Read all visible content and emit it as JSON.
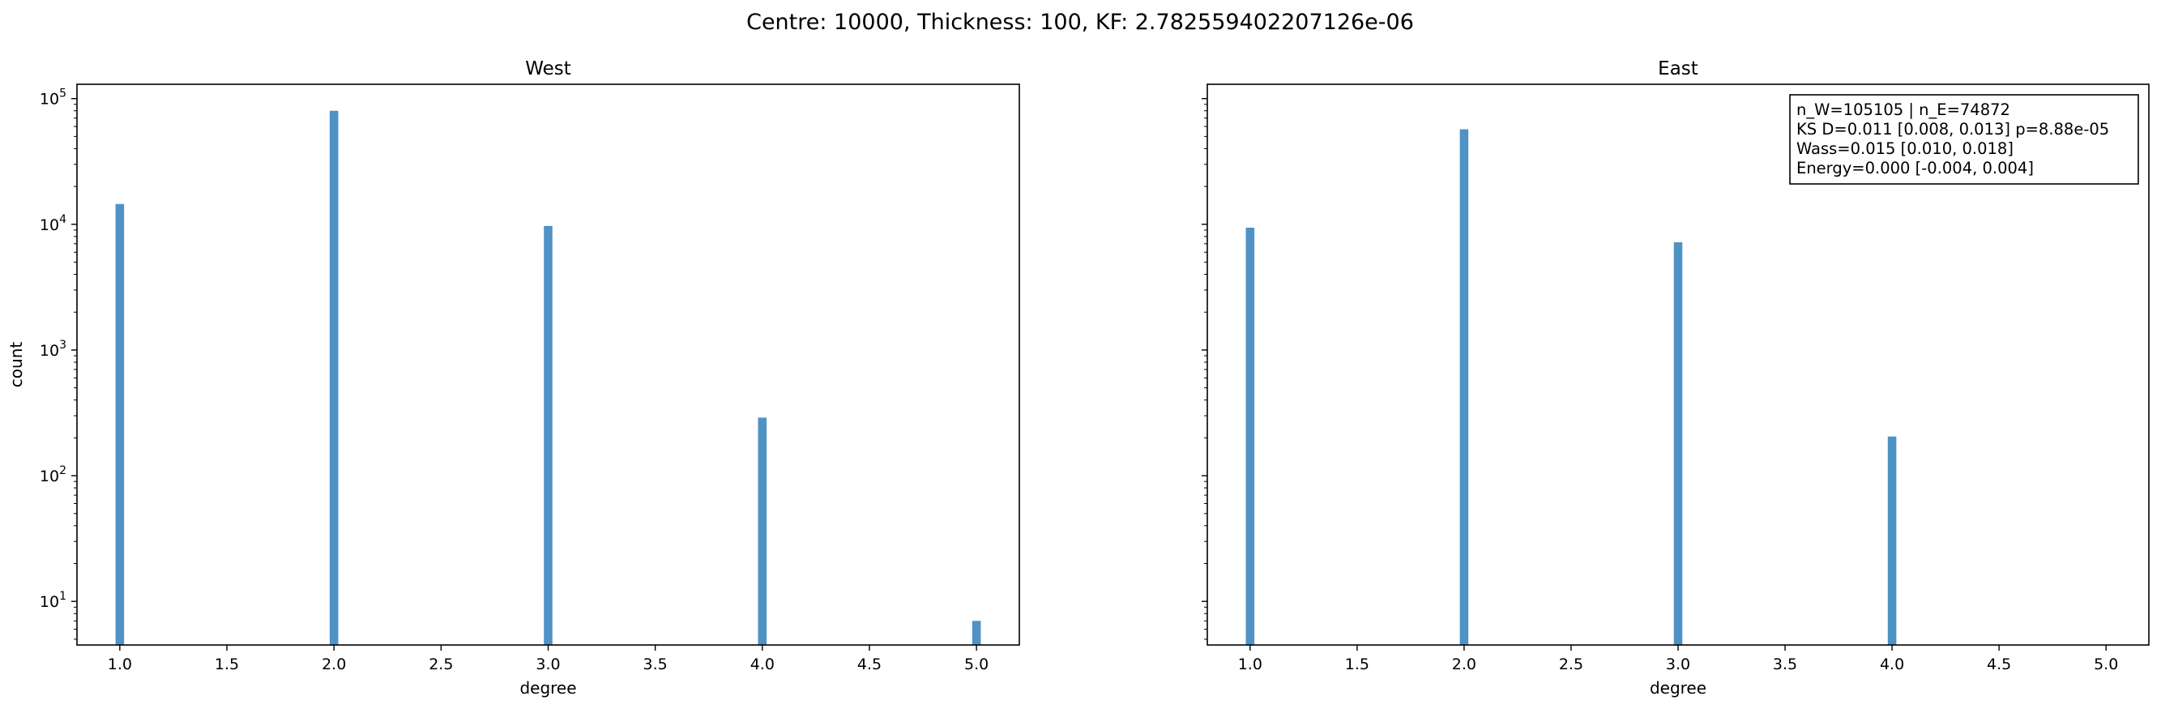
{
  "suptitle": "Centre: 10000, Thickness: 100, KF: 2.782559402207126e-06",
  "chart_data": [
    {
      "type": "bar",
      "title": "West",
      "xlabel": "degree",
      "ylabel": "count",
      "yscale": "log",
      "ylim": [
        4.5,
        130000
      ],
      "xlim": [
        0.8,
        5.2
      ],
      "xticks": [
        "1.0",
        "1.5",
        "2.0",
        "2.5",
        "3.0",
        "3.5",
        "4.0",
        "4.5",
        "5.0"
      ],
      "yticks": [
        {
          "base": "10",
          "exp": "1"
        },
        {
          "base": "10",
          "exp": "2"
        },
        {
          "base": "10",
          "exp": "3"
        },
        {
          "base": "10",
          "exp": "4"
        },
        {
          "base": "10",
          "exp": "5"
        }
      ],
      "x": [
        1,
        2,
        3,
        4,
        5
      ],
      "values": [
        14500,
        80000,
        9700,
        290,
        7
      ],
      "color": "#4f93c5",
      "annotation": []
    },
    {
      "type": "bar",
      "title": "East",
      "xlabel": "degree",
      "ylabel": "",
      "yscale": "log",
      "ylim": [
        4.5,
        130000
      ],
      "xlim": [
        0.8,
        5.2
      ],
      "xticks": [
        "1.0",
        "1.5",
        "2.0",
        "2.5",
        "3.0",
        "3.5",
        "4.0",
        "4.5",
        "5.0"
      ],
      "yticks": [],
      "x": [
        1,
        2,
        3,
        4
      ],
      "values": [
        9400,
        57000,
        7200,
        205
      ],
      "color": "#4f93c5",
      "annotation": [
        "n_W=105105 | n_E=74872",
        "KS D=0.011 [0.008, 0.013]  p=8.88e-05",
        "Wass=0.015 [0.010, 0.018]",
        "Energy=0.000 [-0.004, 0.004]"
      ]
    }
  ]
}
